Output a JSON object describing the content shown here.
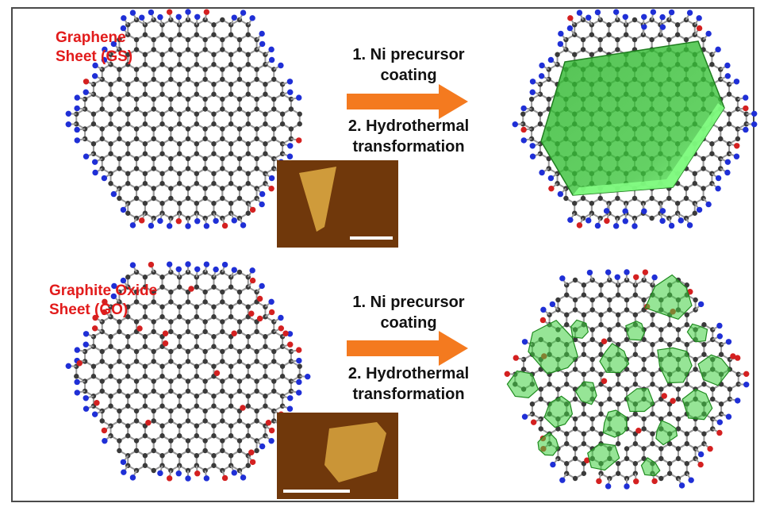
{
  "top_row": {
    "label_line1": "Graphene",
    "label_line2": "Sheet (GS)",
    "step1_line1": "1. Ni precursor",
    "step1_line2": "coating",
    "step2_line1": "2. Hydrothermal",
    "step2_line2": "transformation"
  },
  "bottom_row": {
    "label_line1": "Graphite Oxide",
    "label_line2": "Sheet (GO)",
    "step1_line1": "1. Ni precursor",
    "step1_line2": "coating",
    "step2_line1": "2. Hydrothermal",
    "step2_line2": "transformation"
  },
  "colors": {
    "label": "#e21b1b",
    "arrow": "#f47a1f",
    "carbon": "#3a3a3a",
    "hydrogen": "#1f2fd6",
    "oxygen": "#d42020",
    "coating": "#3fcf3f",
    "afm_background": "#7a3e0e",
    "afm_flake": "#d9a640"
  }
}
